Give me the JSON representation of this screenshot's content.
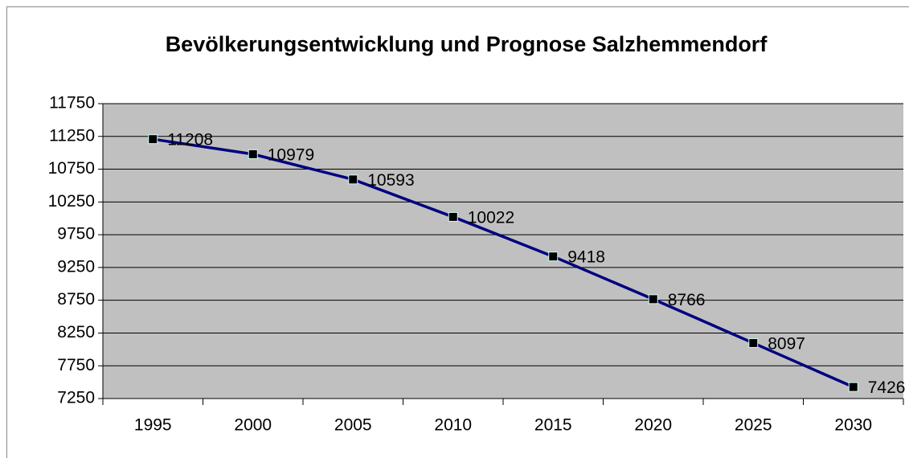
{
  "chart_data": {
    "type": "line",
    "title": "Bevölkerungsentwicklung und Prognose Salzhemmendorf",
    "categories": [
      "1995",
      "2000",
      "2005",
      "2010",
      "2015",
      "2020",
      "2025",
      "2030"
    ],
    "values": [
      11208,
      10979,
      10593,
      10022,
      9418,
      8766,
      8097,
      7426
    ],
    "color": "#000080",
    "ylim": [
      7250,
      11750
    ],
    "yticks": [
      7250,
      7750,
      8250,
      8750,
      9250,
      9750,
      10250,
      10750,
      11250,
      11750
    ],
    "grid": true
  }
}
